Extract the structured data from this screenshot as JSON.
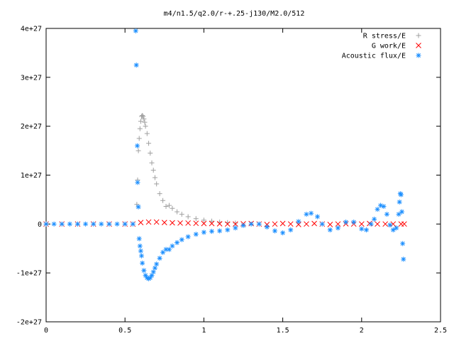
{
  "chart_data": {
    "type": "scatter",
    "title": "m4/n1.5/q2.0/r-+.25-j130/M2.0/512",
    "xlabel": "",
    "ylabel": "",
    "xlim": [
      0,
      2.5
    ],
    "ylim": [
      -2e+27,
      4e+27
    ],
    "grid": false,
    "legend_position": "top-right",
    "xtick_values": [
      0,
      0.5,
      1,
      1.5,
      2,
      2.5
    ],
    "xtick_labels": [
      "0",
      "0.5",
      "1",
      "1.5",
      "2",
      "2.5"
    ],
    "ytick_values": [
      -2e+27,
      -1e+27,
      0,
      1e+27,
      2e+27,
      3e+27,
      4e+27
    ],
    "ytick_labels": [
      "-2e+27",
      "-1e+27",
      "0",
      "1e+27",
      "2e+27",
      "3e+27",
      "4e+27"
    ],
    "series": [
      {
        "name": "R stress/E",
        "marker": "plus",
        "color": "#a0a0a0",
        "points": [
          [
            0.575,
            4e+26
          ],
          [
            0.58,
            9e+26
          ],
          [
            0.585,
            1.5e+27
          ],
          [
            0.59,
            1.75e+27
          ],
          [
            0.595,
            1.95e+27
          ],
          [
            0.6,
            2.1e+27
          ],
          [
            0.605,
            2.2e+27
          ],
          [
            0.61,
            2.22e+27
          ],
          [
            0.615,
            2.2e+27
          ],
          [
            0.62,
            2.15e+27
          ],
          [
            0.625,
            2.08e+27
          ],
          [
            0.63,
            2e+27
          ],
          [
            0.64,
            1.85e+27
          ],
          [
            0.65,
            1.65e+27
          ],
          [
            0.66,
            1.45e+27
          ],
          [
            0.67,
            1.25e+27
          ],
          [
            0.68,
            1.1e+27
          ],
          [
            0.69,
            9.5e+26
          ],
          [
            0.7,
            8.2e+26
          ],
          [
            0.72,
            6.2e+26
          ],
          [
            0.74,
            4.8e+26
          ],
          [
            0.76,
            3.6e+26
          ],
          [
            0.78,
            3.8e+26
          ],
          [
            0.8,
            3.2e+26
          ],
          [
            0.83,
            2.5e+26
          ],
          [
            0.86,
            2e+26
          ],
          [
            0.9,
            1.5e+26
          ],
          [
            0.95,
            1.1e+26
          ],
          [
            1.0,
            8e+25
          ],
          [
            1.05,
            6e+25
          ],
          [
            1.1,
            4e+25
          ],
          [
            1.15,
            3e+25
          ],
          [
            1.2,
            2e+25
          ]
        ]
      },
      {
        "name": "G work/E",
        "marker": "cross",
        "color": "#ff0000",
        "points": [
          [
            0.0,
            0
          ],
          [
            0.1,
            0
          ],
          [
            0.2,
            0
          ],
          [
            0.3,
            0
          ],
          [
            0.4,
            0
          ],
          [
            0.5,
            0
          ],
          [
            0.55,
            0
          ],
          [
            0.6,
            3e+25
          ],
          [
            0.65,
            4e+25
          ],
          [
            0.7,
            4e+25
          ],
          [
            0.75,
            3e+25
          ],
          [
            0.8,
            2.5e+25
          ],
          [
            0.85,
            2e+25
          ],
          [
            0.9,
            2e+25
          ],
          [
            0.95,
            1.5e+25
          ],
          [
            1.0,
            1e+25
          ],
          [
            1.05,
            1e+25
          ],
          [
            1.1,
            5e+24
          ],
          [
            1.15,
            0.0
          ],
          [
            1.2,
            0.0
          ],
          [
            1.25,
            5e+24
          ],
          [
            1.3,
            1e+25
          ],
          [
            1.35,
            0.0
          ],
          [
            1.4,
            -1e+25
          ],
          [
            1.45,
            0.0
          ],
          [
            1.5,
            1e+25
          ],
          [
            1.55,
            0.0
          ],
          [
            1.6,
            -1e+25
          ],
          [
            1.65,
            0.0
          ],
          [
            1.7,
            1e+25
          ],
          [
            1.75,
            0.0
          ],
          [
            1.8,
            -1e+25
          ],
          [
            1.85,
            0.0
          ],
          [
            1.9,
            5e+24
          ],
          [
            1.95,
            0.0
          ],
          [
            2.0,
            0.0
          ],
          [
            2.05,
            1e+25
          ],
          [
            2.1,
            0.0
          ],
          [
            2.15,
            0.0
          ],
          [
            2.2,
            0.0
          ],
          [
            2.25,
            0.0
          ],
          [
            2.27,
            0.0
          ]
        ]
      },
      {
        "name": "Acoustic flux/E",
        "marker": "star",
        "color": "#1e90ff",
        "points": [
          [
            0.0,
            0
          ],
          [
            0.05,
            0
          ],
          [
            0.1,
            0
          ],
          [
            0.15,
            0
          ],
          [
            0.2,
            0
          ],
          [
            0.25,
            0
          ],
          [
            0.3,
            0
          ],
          [
            0.35,
            0
          ],
          [
            0.4,
            0
          ],
          [
            0.45,
            0
          ],
          [
            0.5,
            0
          ],
          [
            0.55,
            0
          ],
          [
            0.568,
            3.95e+27
          ],
          [
            0.572,
            3.25e+27
          ],
          [
            0.578,
            1.6e+27
          ],
          [
            0.58,
            8.5e+26
          ],
          [
            0.585,
            3.5e+26
          ],
          [
            0.59,
            -3e+26
          ],
          [
            0.595,
            -4.5e+26
          ],
          [
            0.6,
            -5.5e+26
          ],
          [
            0.605,
            -6.5e+26
          ],
          [
            0.61,
            -8e+26
          ],
          [
            0.62,
            -9.5e+26
          ],
          [
            0.63,
            -1.05e+27
          ],
          [
            0.64,
            -1.1e+27
          ],
          [
            0.65,
            -1.12e+27
          ],
          [
            0.66,
            -1.1e+27
          ],
          [
            0.67,
            -1.05e+27
          ],
          [
            0.68,
            -9.8e+26
          ],
          [
            0.69,
            -9e+26
          ],
          [
            0.7,
            -8.2e+26
          ],
          [
            0.72,
            -7e+26
          ],
          [
            0.74,
            -5.8e+26
          ],
          [
            0.76,
            -5.2e+26
          ],
          [
            0.78,
            -5.2e+26
          ],
          [
            0.8,
            -4.5e+26
          ],
          [
            0.83,
            -3.8e+26
          ],
          [
            0.86,
            -3.2e+26
          ],
          [
            0.9,
            -2.6e+26
          ],
          [
            0.95,
            -2.1e+26
          ],
          [
            1.0,
            -1.7e+26
          ],
          [
            1.05,
            -1.5e+26
          ],
          [
            1.1,
            -1.4e+26
          ],
          [
            1.15,
            -1.2e+26
          ],
          [
            1.2,
            -8e+25
          ],
          [
            1.25,
            -3e+25
          ],
          [
            1.3,
            0.0
          ],
          [
            1.35,
            0.0
          ],
          [
            1.4,
            -6e+25
          ],
          [
            1.45,
            -1.4e+26
          ],
          [
            1.5,
            -1.8e+26
          ],
          [
            1.55,
            -1.2e+26
          ],
          [
            1.6,
            5e+25
          ],
          [
            1.65,
            2e+26
          ],
          [
            1.68,
            2.2e+26
          ],
          [
            1.72,
            1.5e+26
          ],
          [
            1.75,
            0.0
          ],
          [
            1.8,
            -1.2e+26
          ],
          [
            1.85,
            -8e+25
          ],
          [
            1.9,
            4e+25
          ],
          [
            1.95,
            4e+25
          ],
          [
            2.0,
            -1e+26
          ],
          [
            2.03,
            -1.2e+26
          ],
          [
            2.06,
            0.0
          ],
          [
            2.08,
            1e+26
          ],
          [
            2.1,
            3e+26
          ],
          [
            2.12,
            3.8e+26
          ],
          [
            2.14,
            3.6e+26
          ],
          [
            2.16,
            2e+26
          ],
          [
            2.18,
            -2e+25
          ],
          [
            2.2,
            -1.2e+26
          ],
          [
            2.22,
            -8e+25
          ],
          [
            2.235,
            2e+26
          ],
          [
            2.24,
            4.5e+26
          ],
          [
            2.245,
            6.2e+26
          ],
          [
            2.25,
            6e+26
          ],
          [
            2.255,
            2.5e+26
          ],
          [
            2.26,
            -4e+26
          ],
          [
            2.265,
            -7.2e+26
          ]
        ]
      }
    ]
  }
}
